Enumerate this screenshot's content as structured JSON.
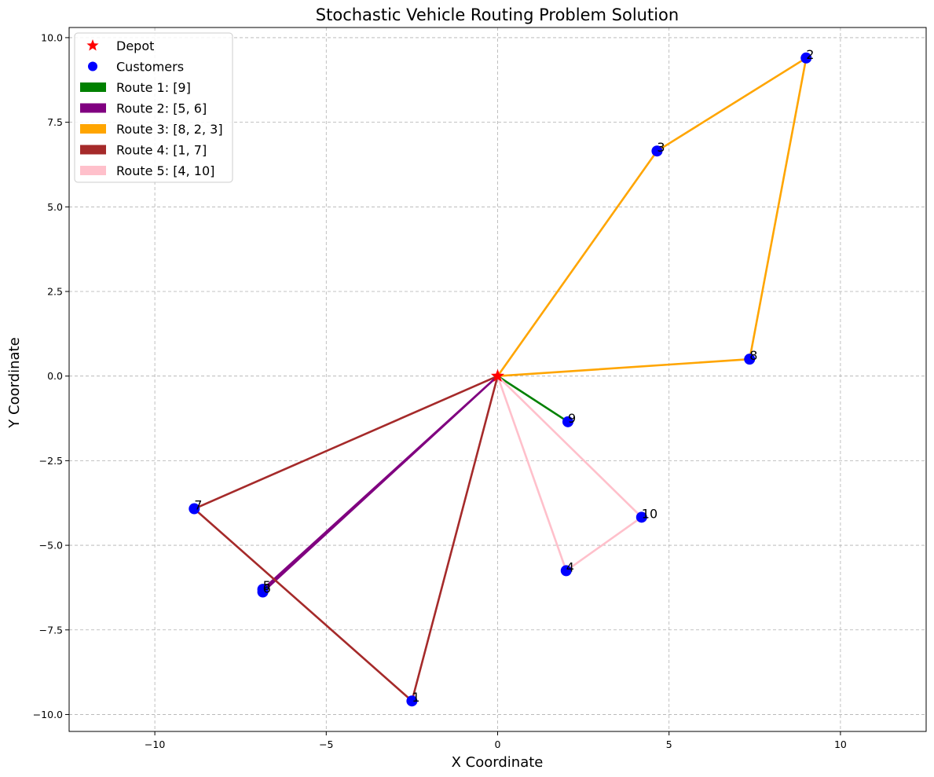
{
  "chart_data": {
    "type": "scatter",
    "title": "Stochastic Vehicle Routing Problem Solution",
    "xlabel": "X Coordinate",
    "ylabel": "Y Coordinate",
    "xlim": [
      -12.5,
      12.5
    ],
    "ylim": [
      -10.5,
      10.3
    ],
    "xticks": [
      -10,
      -5,
      0,
      5,
      10
    ],
    "xtick_labels": [
      "−10",
      "−5",
      "0",
      "5",
      "10"
    ],
    "yticks": [
      -10.0,
      -7.5,
      -5.0,
      -2.5,
      0.0,
      2.5,
      5.0,
      7.5,
      10.0
    ],
    "ytick_labels": [
      "−10.0",
      "−7.5",
      "−5.0",
      "−2.5",
      "0.0",
      "2.5",
      "5.0",
      "7.5",
      "10.0"
    ],
    "grid": true,
    "legend_position": "top-left",
    "depot": {
      "label": "Depot",
      "x": 0,
      "y": 0,
      "color": "#ff0000"
    },
    "customers_label": "Customers",
    "customer_color": "#0000ff",
    "customers": [
      {
        "id": "1",
        "x": -2.5,
        "y": -9.6
      },
      {
        "id": "2",
        "x": 9.0,
        "y": 9.4
      },
      {
        "id": "3",
        "x": 4.65,
        "y": 6.65
      },
      {
        "id": "4",
        "x": 2.0,
        "y": -5.75
      },
      {
        "id": "5",
        "x": -6.85,
        "y": -6.3
      },
      {
        "id": "6",
        "x": -6.85,
        "y": -6.38
      },
      {
        "id": "7",
        "x": -8.85,
        "y": -3.92
      },
      {
        "id": "8",
        "x": 7.35,
        "y": 0.5
      },
      {
        "id": "9",
        "x": 2.05,
        "y": -1.35
      },
      {
        "id": "10",
        "x": 4.2,
        "y": -4.17
      }
    ],
    "routes": [
      {
        "name": "Route 1: [9]",
        "color": "#008000",
        "stops": [
          "9"
        ]
      },
      {
        "name": "Route 2: [5, 6]",
        "color": "#800080",
        "stops": [
          "5",
          "6"
        ]
      },
      {
        "name": "Route 3: [8, 2, 3]",
        "color": "#ffa500",
        "stops": [
          "8",
          "2",
          "3"
        ]
      },
      {
        "name": "Route 4: [1, 7]",
        "color": "#a52a2a",
        "stops": [
          "1",
          "7"
        ]
      },
      {
        "name": "Route 5: [4, 10]",
        "color": "#ffc0cb",
        "stops": [
          "4",
          "10"
        ]
      }
    ]
  }
}
